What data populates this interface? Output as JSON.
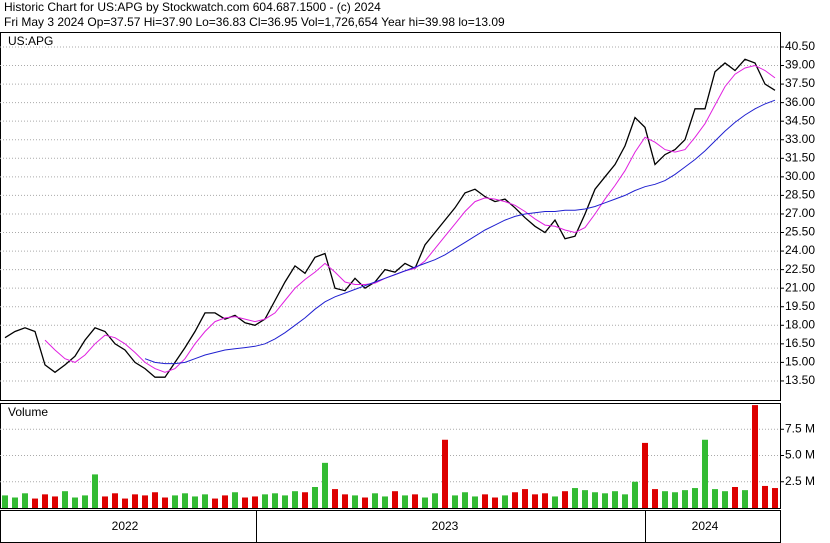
{
  "chart_data": [
    {
      "type": "line",
      "title": "Historic Chart for US:APG by Stockwatch.com 604.687.1500 - (c) 2024",
      "subtitle": "Fri May  3 2024  Op=37.57  Hi=37.90  Lo=36.83  Cl=36.95  Vol=1,726,654  Year hi=39.98  lo=13.09",
      "label": "US:APG",
      "categories": [
        null,
        null,
        null,
        null,
        null,
        null,
        null,
        null,
        null,
        null,
        null,
        null,
        "2022",
        null,
        null,
        null,
        null,
        null,
        null,
        null,
        null,
        null,
        null,
        null,
        null,
        null,
        null,
        null,
        null,
        null,
        null,
        null,
        null,
        null,
        null,
        null,
        null,
        null,
        null,
        null,
        null,
        null,
        null,
        null,
        "2023",
        null,
        null,
        null,
        null,
        null,
        null,
        null,
        null,
        null,
        null,
        null,
        null,
        null,
        null,
        null,
        null,
        null,
        null,
        null,
        null,
        null,
        null,
        null,
        null,
        null,
        "2024",
        null,
        null,
        null,
        null,
        null,
        null,
        null
      ],
      "series": [
        {
          "color": "#000000",
          "values": [
            17.0,
            17.5,
            17.8,
            17.5,
            14.8,
            14.2,
            14.8,
            15.5,
            16.8,
            17.8,
            17.5,
            16.5,
            16.0,
            15.0,
            14.5,
            13.8,
            13.8,
            15.0,
            16.2,
            17.5,
            19.0,
            19.0,
            18.5,
            18.8,
            18.2,
            18.0,
            18.5,
            20.0,
            21.5,
            22.8,
            22.2,
            23.5,
            23.8,
            21.0,
            20.8,
            21.8,
            21.0,
            21.5,
            22.5,
            22.3,
            23.0,
            22.6,
            24.5,
            25.5,
            26.5,
            27.5,
            28.7,
            29.0,
            28.4,
            28.0,
            28.2,
            27.5,
            26.7,
            26.0,
            25.5,
            26.5,
            25.0,
            25.2,
            27.0,
            29.0,
            30.0,
            31.0,
            32.5,
            34.8,
            34.0,
            31.0,
            31.8,
            32.2,
            33.0,
            35.5,
            35.5,
            38.5,
            39.2,
            38.6,
            39.5,
            39.2,
            37.5,
            37.0
          ]
        },
        {
          "color": "#e020e0",
          "values": [
            null,
            null,
            null,
            null,
            16.8,
            16.0,
            15.3,
            15.0,
            15.6,
            16.5,
            17.2,
            17.0,
            16.5,
            15.8,
            15.0,
            14.5,
            14.2,
            14.5,
            15.3,
            16.5,
            17.5,
            18.3,
            18.6,
            18.7,
            18.5,
            18.3,
            18.5,
            19.0,
            20.0,
            21.0,
            21.7,
            22.3,
            23.0,
            22.3,
            21.5,
            21.3,
            21.3,
            21.4,
            21.8,
            22.1,
            22.4,
            22.6,
            23.2,
            24.2,
            25.2,
            26.2,
            27.2,
            28.0,
            28.3,
            28.2,
            28.0,
            27.7,
            27.2,
            26.6,
            26.1,
            26.0,
            25.7,
            25.5,
            25.9,
            27.0,
            28.2,
            29.3,
            30.5,
            32.0,
            33.2,
            32.8,
            32.2,
            32.0,
            32.2,
            33.2,
            34.3,
            35.8,
            37.3,
            38.3,
            38.8,
            39.0,
            38.6,
            38.0
          ]
        },
        {
          "color": "#2020d0",
          "values": [
            null,
            null,
            null,
            null,
            null,
            null,
            null,
            null,
            null,
            null,
            null,
            null,
            null,
            null,
            15.3,
            15.0,
            14.9,
            14.9,
            15.0,
            15.3,
            15.6,
            15.8,
            16.0,
            16.1,
            16.2,
            16.3,
            16.5,
            16.9,
            17.4,
            18.0,
            18.6,
            19.3,
            19.9,
            20.3,
            20.6,
            20.9,
            21.2,
            21.5,
            21.8,
            22.1,
            22.4,
            22.7,
            23.0,
            23.3,
            23.7,
            24.2,
            24.7,
            25.2,
            25.7,
            26.1,
            26.5,
            26.8,
            27.0,
            27.1,
            27.2,
            27.2,
            27.3,
            27.3,
            27.4,
            27.6,
            27.9,
            28.2,
            28.5,
            28.9,
            29.2,
            29.4,
            29.7,
            30.2,
            30.8,
            31.4,
            32.1,
            32.9,
            33.7,
            34.4,
            35.0,
            35.5,
            35.9,
            36.2
          ]
        }
      ],
      "ylim": [
        11.96,
        41.71
      ],
      "yticks": [
        {
          "value": 13.5,
          "label": "13.50"
        },
        {
          "value": 15,
          "label": "15.00"
        },
        {
          "value": 16.5,
          "label": "16.50"
        },
        {
          "value": 18,
          "label": "18.00"
        },
        {
          "value": 19.5,
          "label": "19.50"
        },
        {
          "value": 21,
          "label": "21.00"
        },
        {
          "value": 22.5,
          "label": "22.50"
        },
        {
          "value": 24,
          "label": "24.00"
        },
        {
          "value": 25.5,
          "label": "25.50"
        },
        {
          "value": 27,
          "label": "27.00"
        },
        {
          "value": 28.5,
          "label": "28.50"
        },
        {
          "value": 30,
          "label": "30.00"
        },
        {
          "value": 31.5,
          "label": "31.50"
        },
        {
          "value": 33,
          "label": "33.00"
        },
        {
          "value": 34.5,
          "label": "34.50"
        },
        {
          "value": 36,
          "label": "36.00"
        },
        {
          "value": 37.5,
          "label": "37.50"
        },
        {
          "value": 39,
          "label": "39.00"
        },
        {
          "value": 40.5,
          "label": "40.50"
        }
      ],
      "grid": true
    },
    {
      "type": "bar",
      "title": "Volume",
      "values": [
        1.2,
        1.0,
        1.4,
        0.9,
        1.3,
        1.1,
        1.6,
        1.0,
        1.2,
        3.2,
        1.1,
        1.4,
        0.9,
        1.3,
        1.2,
        1.5,
        1.0,
        1.2,
        1.4,
        1.1,
        1.3,
        0.9,
        1.2,
        1.5,
        1.0,
        1.1,
        1.3,
        1.4,
        1.2,
        1.6,
        1.5,
        2.0,
        4.3,
        1.8,
        1.3,
        1.2,
        1.0,
        1.4,
        1.1,
        1.6,
        1.2,
        1.3,
        1.0,
        1.4,
        6.5,
        1.2,
        1.5,
        1.1,
        1.3,
        1.0,
        1.2,
        1.5,
        1.8,
        1.3,
        1.4,
        1.1,
        1.6,
        1.9,
        1.7,
        1.5,
        1.4,
        1.6,
        1.3,
        2.5,
        6.2,
        1.8,
        1.6,
        1.5,
        1.7,
        1.9,
        6.5,
        1.8,
        1.6,
        2.0,
        1.7,
        9.8,
        2.1,
        1.9
      ],
      "up": [
        true,
        true,
        true,
        false,
        false,
        false,
        true,
        true,
        true,
        true,
        false,
        false,
        false,
        false,
        false,
        false,
        false,
        true,
        true,
        true,
        true,
        false,
        false,
        true,
        false,
        false,
        true,
        true,
        true,
        true,
        false,
        true,
        true,
        false,
        false,
        true,
        false,
        true,
        true,
        false,
        true,
        false,
        true,
        true,
        false,
        true,
        true,
        true,
        false,
        false,
        true,
        false,
        false,
        false,
        false,
        true,
        false,
        true,
        true,
        true,
        true,
        true,
        true,
        true,
        false,
        false,
        true,
        true,
        true,
        true,
        true,
        true,
        true,
        false,
        true,
        false,
        false,
        false
      ],
      "up_color": "#33bb33",
      "down_color": "#dd0000",
      "ylim": [
        0,
        10
      ],
      "yticks": [
        {
          "value": 2.5,
          "label": "2.5 M"
        },
        {
          "value": 5,
          "label": "5.0 M"
        },
        {
          "value": 7.5,
          "label": "7.5 M"
        }
      ],
      "grid": true
    }
  ]
}
